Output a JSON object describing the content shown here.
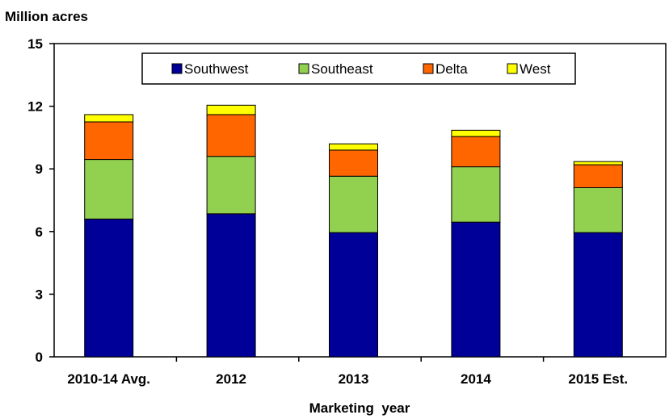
{
  "chart_data": {
    "type": "bar",
    "stacked": true,
    "ylabel": "Million acres",
    "xlabel": "Marketing  year",
    "ylim": [
      0,
      15
    ],
    "yticks": [
      0,
      3,
      6,
      9,
      12,
      15
    ],
    "categories": [
      "2010-14 Avg.",
      "2012",
      "2013",
      "2014",
      "2015 Est."
    ],
    "series": [
      {
        "name": "Southwest",
        "color": "#000099",
        "values": [
          6.6,
          6.85,
          5.95,
          6.45,
          5.95
        ]
      },
      {
        "name": "Southeast",
        "color": "#92D050",
        "values": [
          2.85,
          2.75,
          2.7,
          2.65,
          2.15
        ]
      },
      {
        "name": "Delta",
        "color": "#FF6600",
        "values": [
          1.8,
          2.0,
          1.25,
          1.45,
          1.1
        ]
      },
      {
        "name": "West",
        "color": "#FFFF00",
        "values": [
          0.35,
          0.45,
          0.3,
          0.3,
          0.15
        ]
      }
    ],
    "legend_position": "top",
    "grid": false
  }
}
